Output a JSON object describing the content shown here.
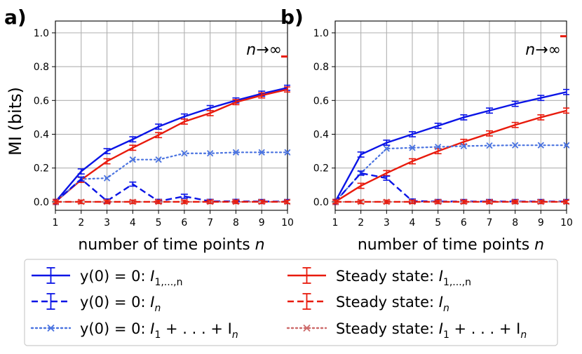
{
  "figure": {
    "ylabel": "MI (bits)",
    "legend_position": "bottom-center"
  },
  "legend": {
    "entries": [
      {
        "label_prefix": "y(0) = 0: ",
        "label_math": "I",
        "label_sub": "1,...,n",
        "color": "#0a14e6",
        "style": "solid-errorbar"
      },
      {
        "label_prefix": "y(0) = 0: ",
        "label_math": "I",
        "label_sub": "n",
        "color": "#0a14e6",
        "style": "dashed-errorbar"
      },
      {
        "label_prefix": "y(0) = 0: ",
        "label_math": "I",
        "label_sub": "1",
        "label_suffix": " + . . . + I",
        "label_sub2": "n",
        "color": "#4a73e0",
        "style": "dotted-x"
      },
      {
        "label_prefix": "Steady state: ",
        "label_math": "I",
        "label_sub": "1,...,n",
        "color": "#e81a0c",
        "style": "solid-errorbar"
      },
      {
        "label_prefix": "Steady state: ",
        "label_math": "I",
        "label_sub": "n",
        "color": "#e81a0c",
        "style": "dashed-errorbar"
      },
      {
        "label_prefix": "Steady state: ",
        "label_math": "I",
        "label_sub": "1",
        "label_suffix": " + . . . + I",
        "label_sub2": "n",
        "color": "#cd6a6a",
        "style": "dotted-x"
      }
    ]
  },
  "chart_data": [
    {
      "type": "line",
      "panel_label": "a)",
      "annotation": "n→∞",
      "xlabel": "number of time points n",
      "ylabel": "MI (bits)",
      "xlim": [
        1,
        10
      ],
      "ylim": [
        -0.05,
        1.07
      ],
      "xticks": [
        1,
        2,
        3,
        4,
        5,
        6,
        7,
        8,
        9,
        10
      ],
      "yticks": [
        0.0,
        0.2,
        0.4,
        0.6,
        0.8,
        1.0
      ],
      "ytick_labels": [
        "0.0",
        "0.2",
        "0.4",
        "0.6",
        "0.8",
        "1.0"
      ],
      "grid": true,
      "x": [
        1,
        2,
        3,
        4,
        5,
        6,
        7,
        8,
        9,
        10
      ],
      "series": [
        {
          "name": "y(0)=0: I_{1..n}",
          "color": "#0a14e6",
          "style": "solid",
          "errorbars": true,
          "values": [
            0.0,
            0.18,
            0.3,
            0.37,
            0.445,
            0.505,
            0.555,
            0.6,
            0.64,
            0.675
          ],
          "err": 0.015
        },
        {
          "name": "Steady state: I_{1..n}",
          "color": "#e81a0c",
          "style": "solid",
          "errorbars": true,
          "values": [
            0.0,
            0.13,
            0.24,
            0.32,
            0.395,
            0.475,
            0.525,
            0.59,
            0.63,
            0.665
          ],
          "err": 0.015
        },
        {
          "name": "y(0)=0: I_1+...+I_n",
          "color": "#4a73e0",
          "style": "dotted",
          "marker": "x",
          "values": [
            0.0,
            0.135,
            0.14,
            0.25,
            0.25,
            0.287,
            0.287,
            0.293,
            0.293,
            0.293
          ]
        },
        {
          "name": "y(0)=0: I_n",
          "color": "#0a14e6",
          "style": "dashed",
          "errorbars": true,
          "values": [
            0.0,
            0.135,
            0.005,
            0.105,
            0.003,
            0.033,
            0.003,
            0.003,
            0.002,
            0.002
          ],
          "err": 0.012
        },
        {
          "name": "Steady state: I_1+...+I_n",
          "color": "#cd6a6a",
          "style": "dotted",
          "marker": "x",
          "values": [
            0.0,
            0.0,
            0.0,
            0.0,
            0.0,
            0.0,
            0.0,
            0.0,
            0.0,
            0.0
          ]
        },
        {
          "name": "Steady state: I_n",
          "color": "#e81a0c",
          "style": "dashed",
          "errorbars": true,
          "values": [
            0.0,
            0.0,
            0.0,
            0.0,
            0.0,
            0.0,
            0.0,
            0.0,
            0.0,
            0.0
          ],
          "err": 0.01
        }
      ],
      "asymptotes": [
        {
          "color": "#e81a0c",
          "value": 0.86
        }
      ]
    },
    {
      "type": "line",
      "panel_label": "b)",
      "annotation": "n→∞",
      "xlabel": "number of time points n",
      "ylabel": "",
      "xlim": [
        1,
        10
      ],
      "ylim": [
        -0.05,
        1.07
      ],
      "xticks": [
        1,
        2,
        3,
        4,
        5,
        6,
        7,
        8,
        9,
        10
      ],
      "yticks": [
        0.0,
        0.2,
        0.4,
        0.6,
        0.8,
        1.0
      ],
      "ytick_labels": [
        "0.0",
        "0.2",
        "0.4",
        "0.6",
        "0.8",
        "1.0"
      ],
      "grid": true,
      "x": [
        1,
        2,
        3,
        4,
        5,
        6,
        7,
        8,
        9,
        10
      ],
      "series": [
        {
          "name": "y(0)=0: I_{1..n}",
          "color": "#0a14e6",
          "style": "solid",
          "errorbars": true,
          "values": [
            0.0,
            0.28,
            0.35,
            0.4,
            0.45,
            0.5,
            0.54,
            0.58,
            0.615,
            0.65
          ],
          "err": 0.015
        },
        {
          "name": "Steady state: I_{1..n}",
          "color": "#e81a0c",
          "style": "solid",
          "errorbars": true,
          "values": [
            0.0,
            0.095,
            0.17,
            0.24,
            0.3,
            0.355,
            0.405,
            0.455,
            0.5,
            0.54
          ],
          "err": 0.015
        },
        {
          "name": "y(0)=0: I_1+...+I_n",
          "color": "#4a73e0",
          "style": "dotted",
          "marker": "x",
          "values": [
            0.0,
            0.17,
            0.315,
            0.32,
            0.325,
            0.33,
            0.333,
            0.335,
            0.335,
            0.335
          ]
        },
        {
          "name": "y(0)=0: I_n",
          "color": "#0a14e6",
          "style": "dashed",
          "errorbars": true,
          "values": [
            0.0,
            0.17,
            0.14,
            0.005,
            0.002,
            0.002,
            0.002,
            0.002,
            0.002,
            0.002
          ],
          "err": 0.012
        },
        {
          "name": "Steady state: I_1+...+I_n",
          "color": "#cd6a6a",
          "style": "dotted",
          "marker": "x",
          "values": [
            0.0,
            0.0,
            0.0,
            0.0,
            0.0,
            0.0,
            0.0,
            0.0,
            0.0,
            0.0
          ]
        },
        {
          "name": "Steady state: I_n",
          "color": "#e81a0c",
          "style": "dashed",
          "errorbars": true,
          "values": [
            0.0,
            0.0,
            0.0,
            0.0,
            0.0,
            0.0,
            0.0,
            0.0,
            0.0,
            0.0
          ],
          "err": 0.01
        }
      ],
      "asymptotes": [
        {
          "color": "#e81a0c",
          "value": 0.98
        }
      ]
    }
  ]
}
